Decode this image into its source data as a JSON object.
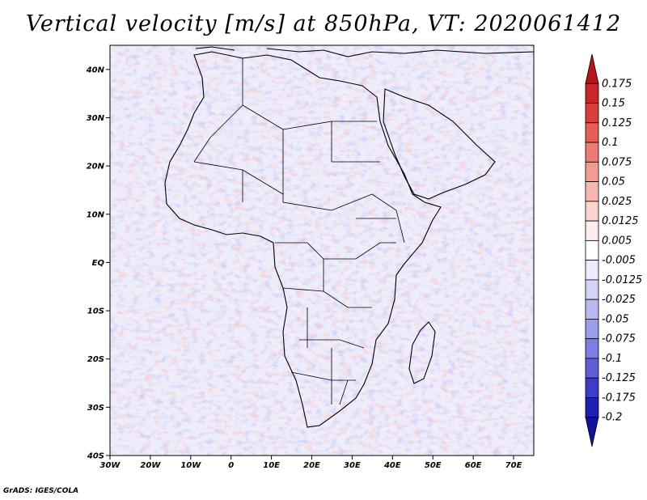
{
  "title": "Vertical velocity [m/s] at 850hPa, VT: 2020061412",
  "credit": "GrADS: IGES/COLA",
  "map": {
    "lon_range": [
      -30,
      75
    ],
    "lat_range": [
      -40,
      45
    ],
    "lon_ticks": [
      {
        "value": -30,
        "label": "30W"
      },
      {
        "value": -20,
        "label": "20W"
      },
      {
        "value": -10,
        "label": "10W"
      },
      {
        "value": 0,
        "label": "0"
      },
      {
        "value": 10,
        "label": "10E"
      },
      {
        "value": 20,
        "label": "20E"
      },
      {
        "value": 30,
        "label": "30E"
      },
      {
        "value": 40,
        "label": "40E"
      },
      {
        "value": 50,
        "label": "50E"
      },
      {
        "value": 60,
        "label": "60E"
      },
      {
        "value": 70,
        "label": "70E"
      }
    ],
    "lat_ticks": [
      {
        "value": 40,
        "label": "40N"
      },
      {
        "value": 30,
        "label": "30N"
      },
      {
        "value": 20,
        "label": "20N"
      },
      {
        "value": 10,
        "label": "10N"
      },
      {
        "value": 0,
        "label": "EQ"
      },
      {
        "value": -10,
        "label": "10S"
      },
      {
        "value": -20,
        "label": "20S"
      },
      {
        "value": -30,
        "label": "30S"
      },
      {
        "value": -40,
        "label": "40S"
      }
    ]
  },
  "colorbar": {
    "labels": [
      "0.175",
      "0.15",
      "0.125",
      "0.1",
      "0.075",
      "0.05",
      "0.025",
      "0.0125",
      "0.005",
      "-0.005",
      "-0.0125",
      "-0.025",
      "-0.05",
      "-0.075",
      "-0.1",
      "-0.125",
      "-0.175",
      "-0.2"
    ],
    "colors": [
      "#b4161c",
      "#c7272b",
      "#d9403d",
      "#e55d57",
      "#ee7b73",
      "#f39a93",
      "#f7b7b1",
      "#fbd3cf",
      "#fdeceb",
      "#ffffff",
      "#ececfc",
      "#d4d4f8",
      "#b9b9f2",
      "#9c9cec",
      "#7d7de2",
      "#5e5ed6",
      "#3d3dc6",
      "#2020b0",
      "#12129a"
    ]
  }
}
